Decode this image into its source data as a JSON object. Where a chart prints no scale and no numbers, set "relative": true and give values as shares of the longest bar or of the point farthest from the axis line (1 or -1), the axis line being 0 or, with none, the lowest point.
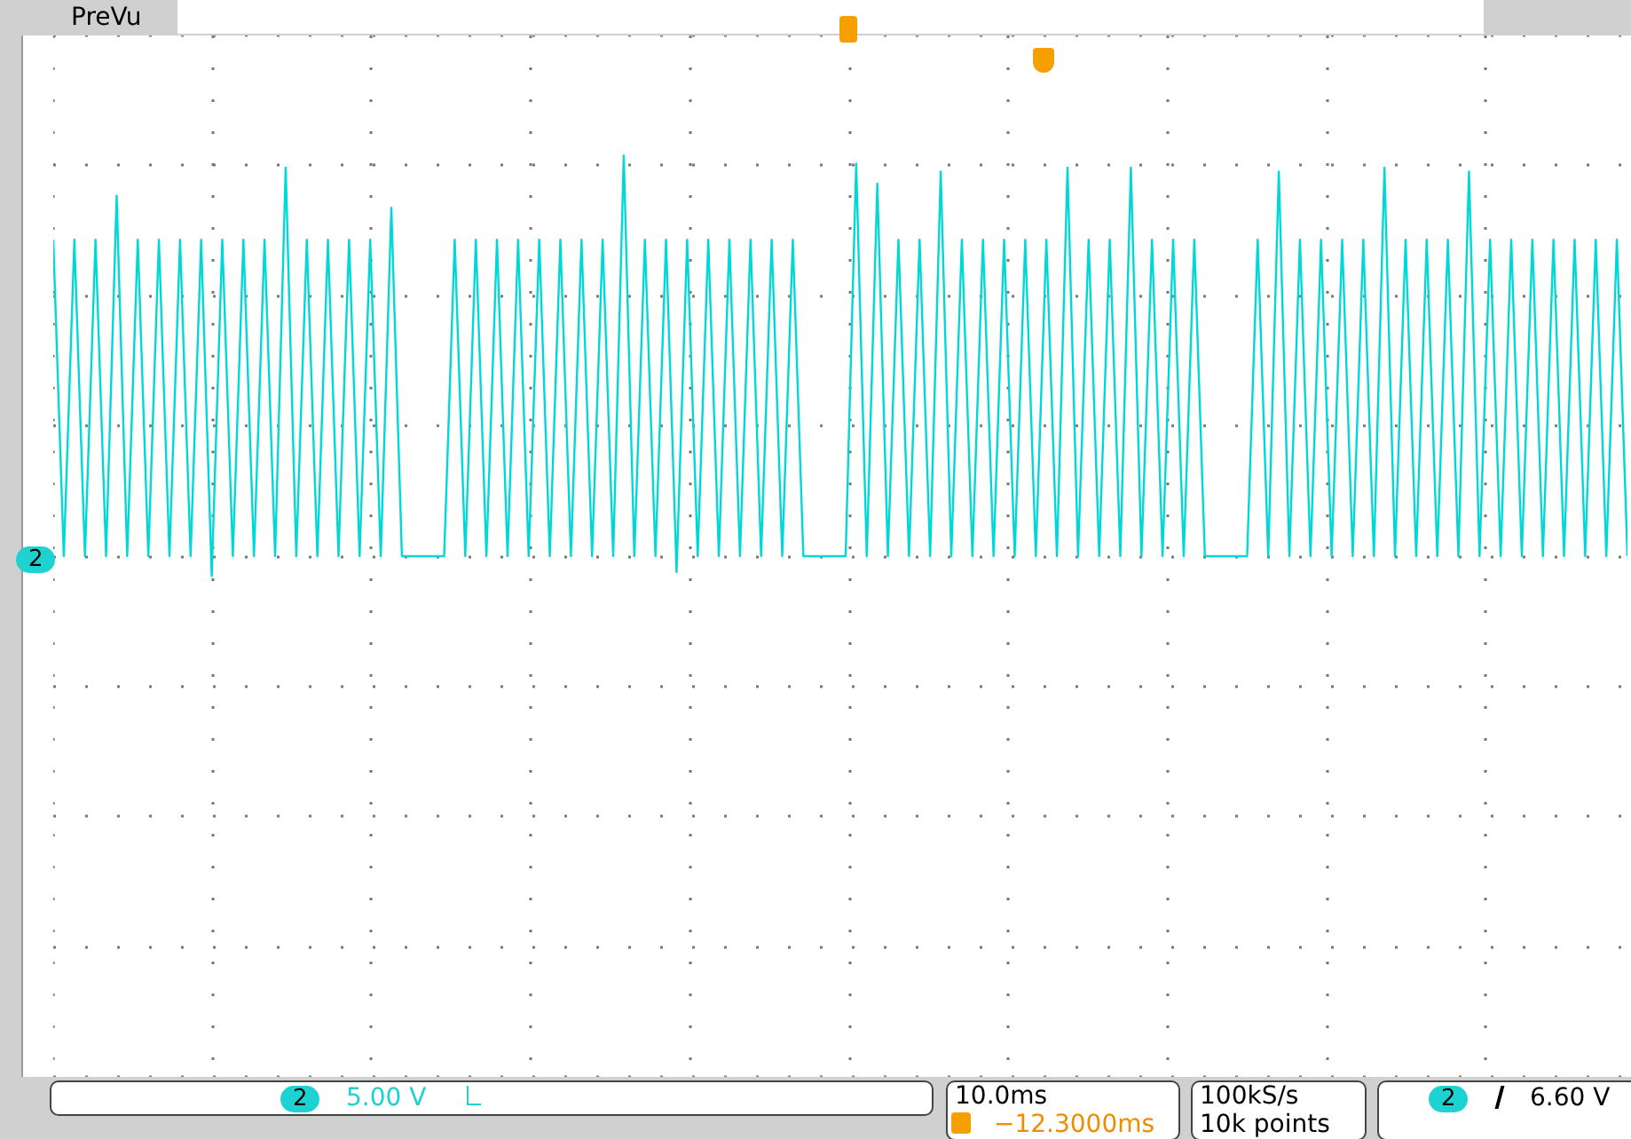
{
  "chart_data": {
    "type": "line",
    "relative": true,
    "marker": "none",
    "categories": [
      null,
      null,
      null,
      null,
      null,
      null,
      null,
      null,
      null,
      null,
      null,
      null,
      null,
      null,
      null,
      null,
      null,
      null,
      null,
      null,
      null,
      null,
      null,
      null,
      null,
      null,
      null,
      null,
      null,
      null,
      null,
      null,
      null,
      null,
      null,
      null,
      null,
      null,
      null,
      null,
      null,
      null,
      null,
      null,
      null,
      null,
      null,
      null,
      null,
      null,
      null,
      null,
      null,
      null,
      null,
      null,
      null,
      null,
      null,
      null,
      null,
      null,
      null,
      null,
      null,
      null,
      null,
      null,
      null,
      null,
      null,
      null,
      null,
      null,
      null,
      null,
      null,
      null,
      null,
      null,
      null,
      null,
      null,
      null,
      null,
      null,
      null,
      null,
      null,
      null,
      null,
      null,
      null,
      null,
      null,
      null,
      null,
      null,
      null,
      null,
      null,
      null,
      null,
      null,
      null,
      null,
      null,
      null,
      null,
      null,
      null,
      null,
      null,
      null,
      null,
      null,
      null,
      null,
      null,
      null,
      null,
      null,
      null,
      null,
      null,
      null,
      null,
      null,
      null,
      null,
      null,
      null,
      null,
      null,
      null,
      null,
      null,
      null,
      null,
      null,
      null,
      null,
      null,
      null,
      null,
      null,
      null,
      null,
      null,
      null
    ],
    "series": [
      {
        "color": "#00d8d8",
        "values": [
          0.79,
          0,
          0.79,
          0,
          0.79,
          0,
          0.9,
          0,
          0.79,
          0,
          0.79,
          0,
          0.79,
          0,
          0.79,
          -0.05,
          0.79,
          0,
          0.79,
          0,
          0.79,
          0,
          0.97,
          0,
          0.79,
          0,
          0.79,
          0,
          0.79,
          0,
          0.79,
          0,
          0.87,
          0,
          0,
          0,
          0,
          0,
          0.79,
          0,
          0.79,
          0,
          0.79,
          0,
          0.79,
          0,
          0.79,
          0,
          0.79,
          0,
          0.79,
          0,
          0.79,
          0,
          1,
          0,
          0.79,
          0,
          0.79,
          -0.04,
          0.79,
          0,
          0.79,
          0,
          0.79,
          0,
          0.79,
          0,
          0.79,
          0,
          0.79,
          0,
          0,
          0,
          0,
          0,
          0.98,
          0,
          0.93,
          0,
          0.79,
          0,
          0.79,
          0,
          0.96,
          0,
          0.79,
          0,
          0.79,
          0,
          0.79,
          0,
          0.79,
          0,
          0.79,
          0,
          0.97,
          0,
          0.79,
          0,
          0.79,
          0,
          0.97,
          0,
          0.79,
          0,
          0.79,
          0,
          0.79,
          0,
          0,
          0,
          0,
          0,
          0.79,
          0,
          0.96,
          0,
          0.79,
          0,
          0.79,
          0,
          0.79,
          0,
          0.79,
          0,
          0.97,
          0,
          0.79,
          0,
          0.79,
          0,
          0.79,
          0,
          0.96,
          0,
          0.79,
          0,
          0.79,
          0,
          0.79,
          0,
          0.79,
          0,
          0.79,
          0,
          0.79,
          0,
          0.79,
          0
        ]
      }
    ],
    "annotations": [
      "PreVu",
      "2",
      "2",
      "5.00 V",
      "10.0ms",
      "−12.3000ms",
      "100kS/s",
      "10k points",
      "2",
      "6.60 V"
    ]
  }
}
